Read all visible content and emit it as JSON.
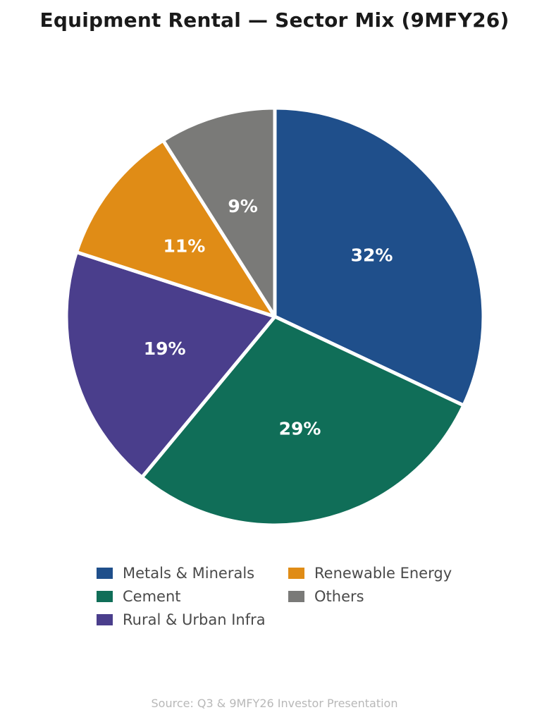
{
  "chart_data": {
    "type": "pie",
    "title": "Equipment Rental — Sector Mix (9MFY26)",
    "unit": "%",
    "legend_position": "bottom",
    "slices": [
      {
        "label": "Metals & Minerals",
        "value": 32,
        "color": "#1f4f8b"
      },
      {
        "label": "Cement",
        "value": 29,
        "color": "#106e58"
      },
      {
        "label": "Rural & Urban Infra",
        "value": 19,
        "color": "#4a3e8c"
      },
      {
        "label": "Renewable Energy",
        "value": 11,
        "color": "#e08c16"
      },
      {
        "label": "Others",
        "value": 9,
        "color": "#7a7a78"
      }
    ],
    "source": "Source: Q3 & 9MFY26 Investor Presentation"
  }
}
